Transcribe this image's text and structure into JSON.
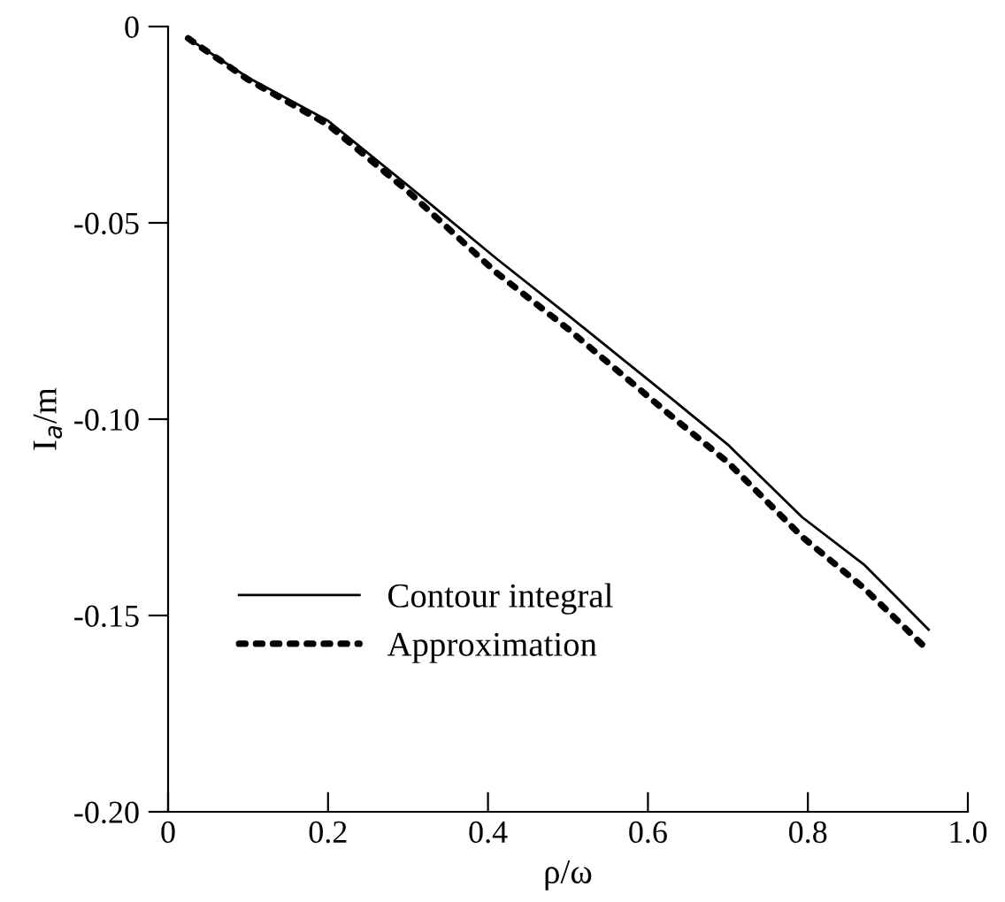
{
  "chart_data": {
    "type": "line",
    "xlabel": "ρ/ω",
    "ylabel": "I$_{a}$/m",
    "xlim": [
      0,
      1.0
    ],
    "ylim": [
      -0.2,
      0
    ],
    "xticks": [
      {
        "value": 0,
        "label": "0"
      },
      0.2,
      0.4,
      0.6,
      0.8,
      {
        "value": 1.0,
        "label": "1.0"
      }
    ],
    "yticks": [
      {
        "value": -0.2,
        "label": "-0.20"
      },
      {
        "value": -0.15,
        "label": "-0.15"
      },
      {
        "value": -0.1,
        "label": "-0.10"
      },
      {
        "value": -0.05,
        "label": "-0.05"
      },
      {
        "value": 0,
        "label": "0"
      }
    ],
    "grid": false,
    "legend": "bottom left",
    "series": [
      {
        "name": "Contour integral",
        "color": "#000000",
        "line_style": "solid",
        "x": [
          0.025,
          0.1,
          0.2,
          0.3,
          0.41,
          0.5,
          0.628,
          0.7,
          0.793,
          0.87,
          0.951
        ],
        "values": [
          -0.003,
          -0.013,
          -0.024,
          -0.0405,
          -0.059,
          -0.0735,
          -0.0945,
          -0.1065,
          -0.125,
          -0.137,
          -0.1536
        ]
      },
      {
        "name": "Approximation",
        "color": "#000000",
        "line_style": "dotted",
        "x": [
          0.025,
          0.1,
          0.2,
          0.3,
          0.41,
          0.5,
          0.628,
          0.7,
          0.793,
          0.87,
          0.951
        ],
        "values": [
          -0.003,
          -0.0135,
          -0.025,
          -0.042,
          -0.0626,
          -0.077,
          -0.099,
          -0.111,
          -0.13,
          -0.143,
          -0.159
        ]
      }
    ]
  }
}
